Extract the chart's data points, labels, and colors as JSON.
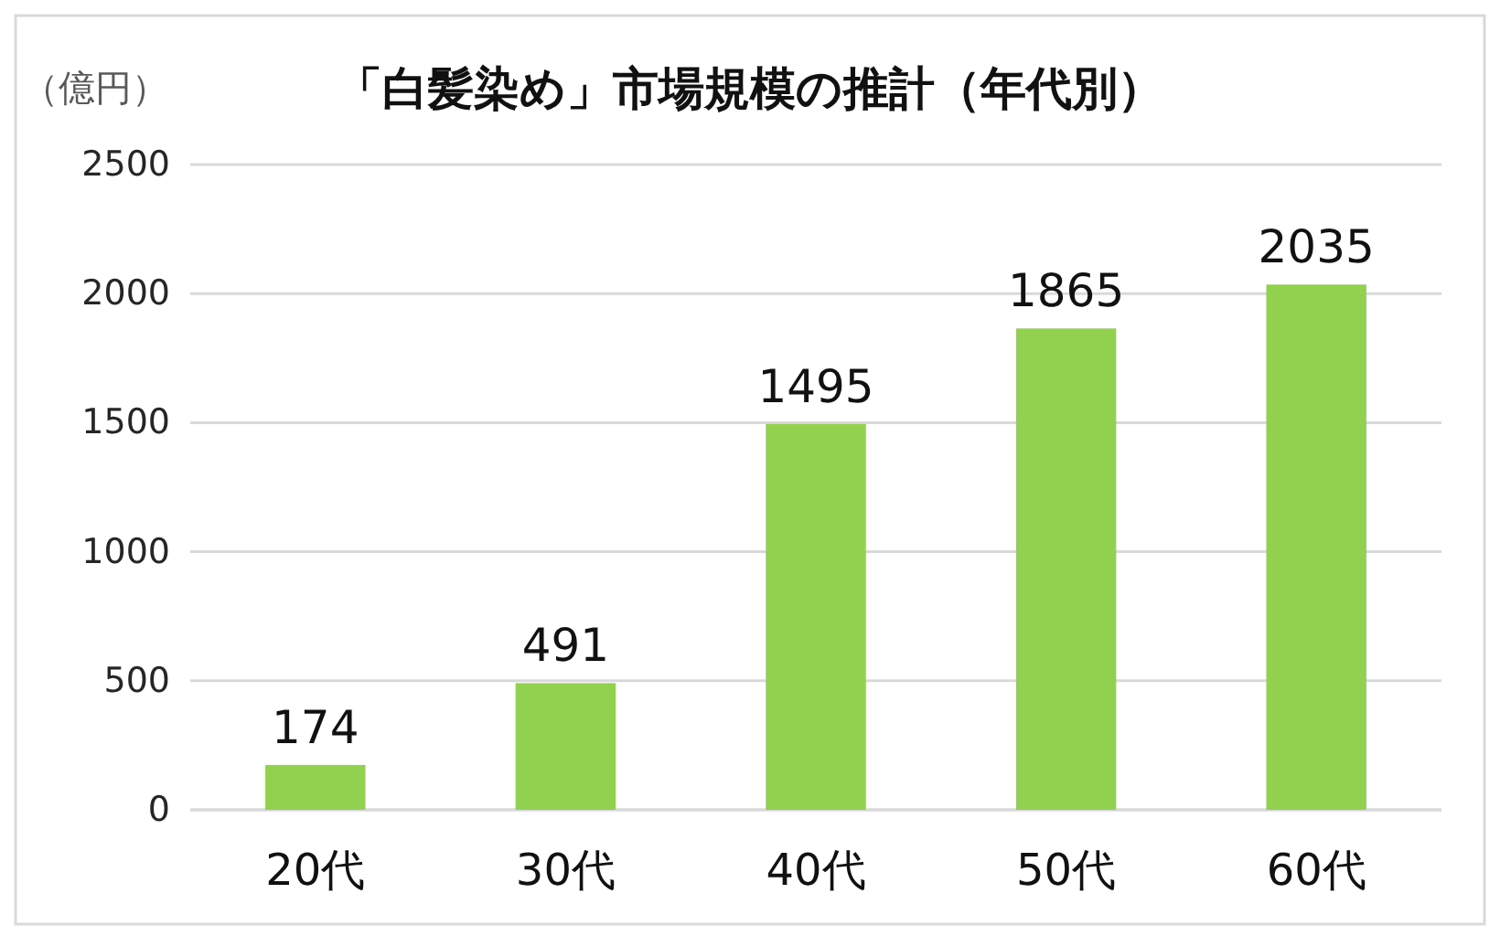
{
  "chart_data": {
    "type": "bar",
    "title": "「白髪染め」市場規模の推計（年代別）",
    "ylabel": "（億円）",
    "categories": [
      "20代",
      "30代",
      "40代",
      "50代",
      "60代"
    ],
    "values": [
      174,
      491,
      1495,
      1865,
      2035
    ],
    "color": "#92d050",
    "ylim": [
      0,
      2500
    ],
    "yticks": [
      0,
      500,
      1000,
      1500,
      2000,
      2500
    ],
    "grid": "y",
    "data_labels": true
  }
}
